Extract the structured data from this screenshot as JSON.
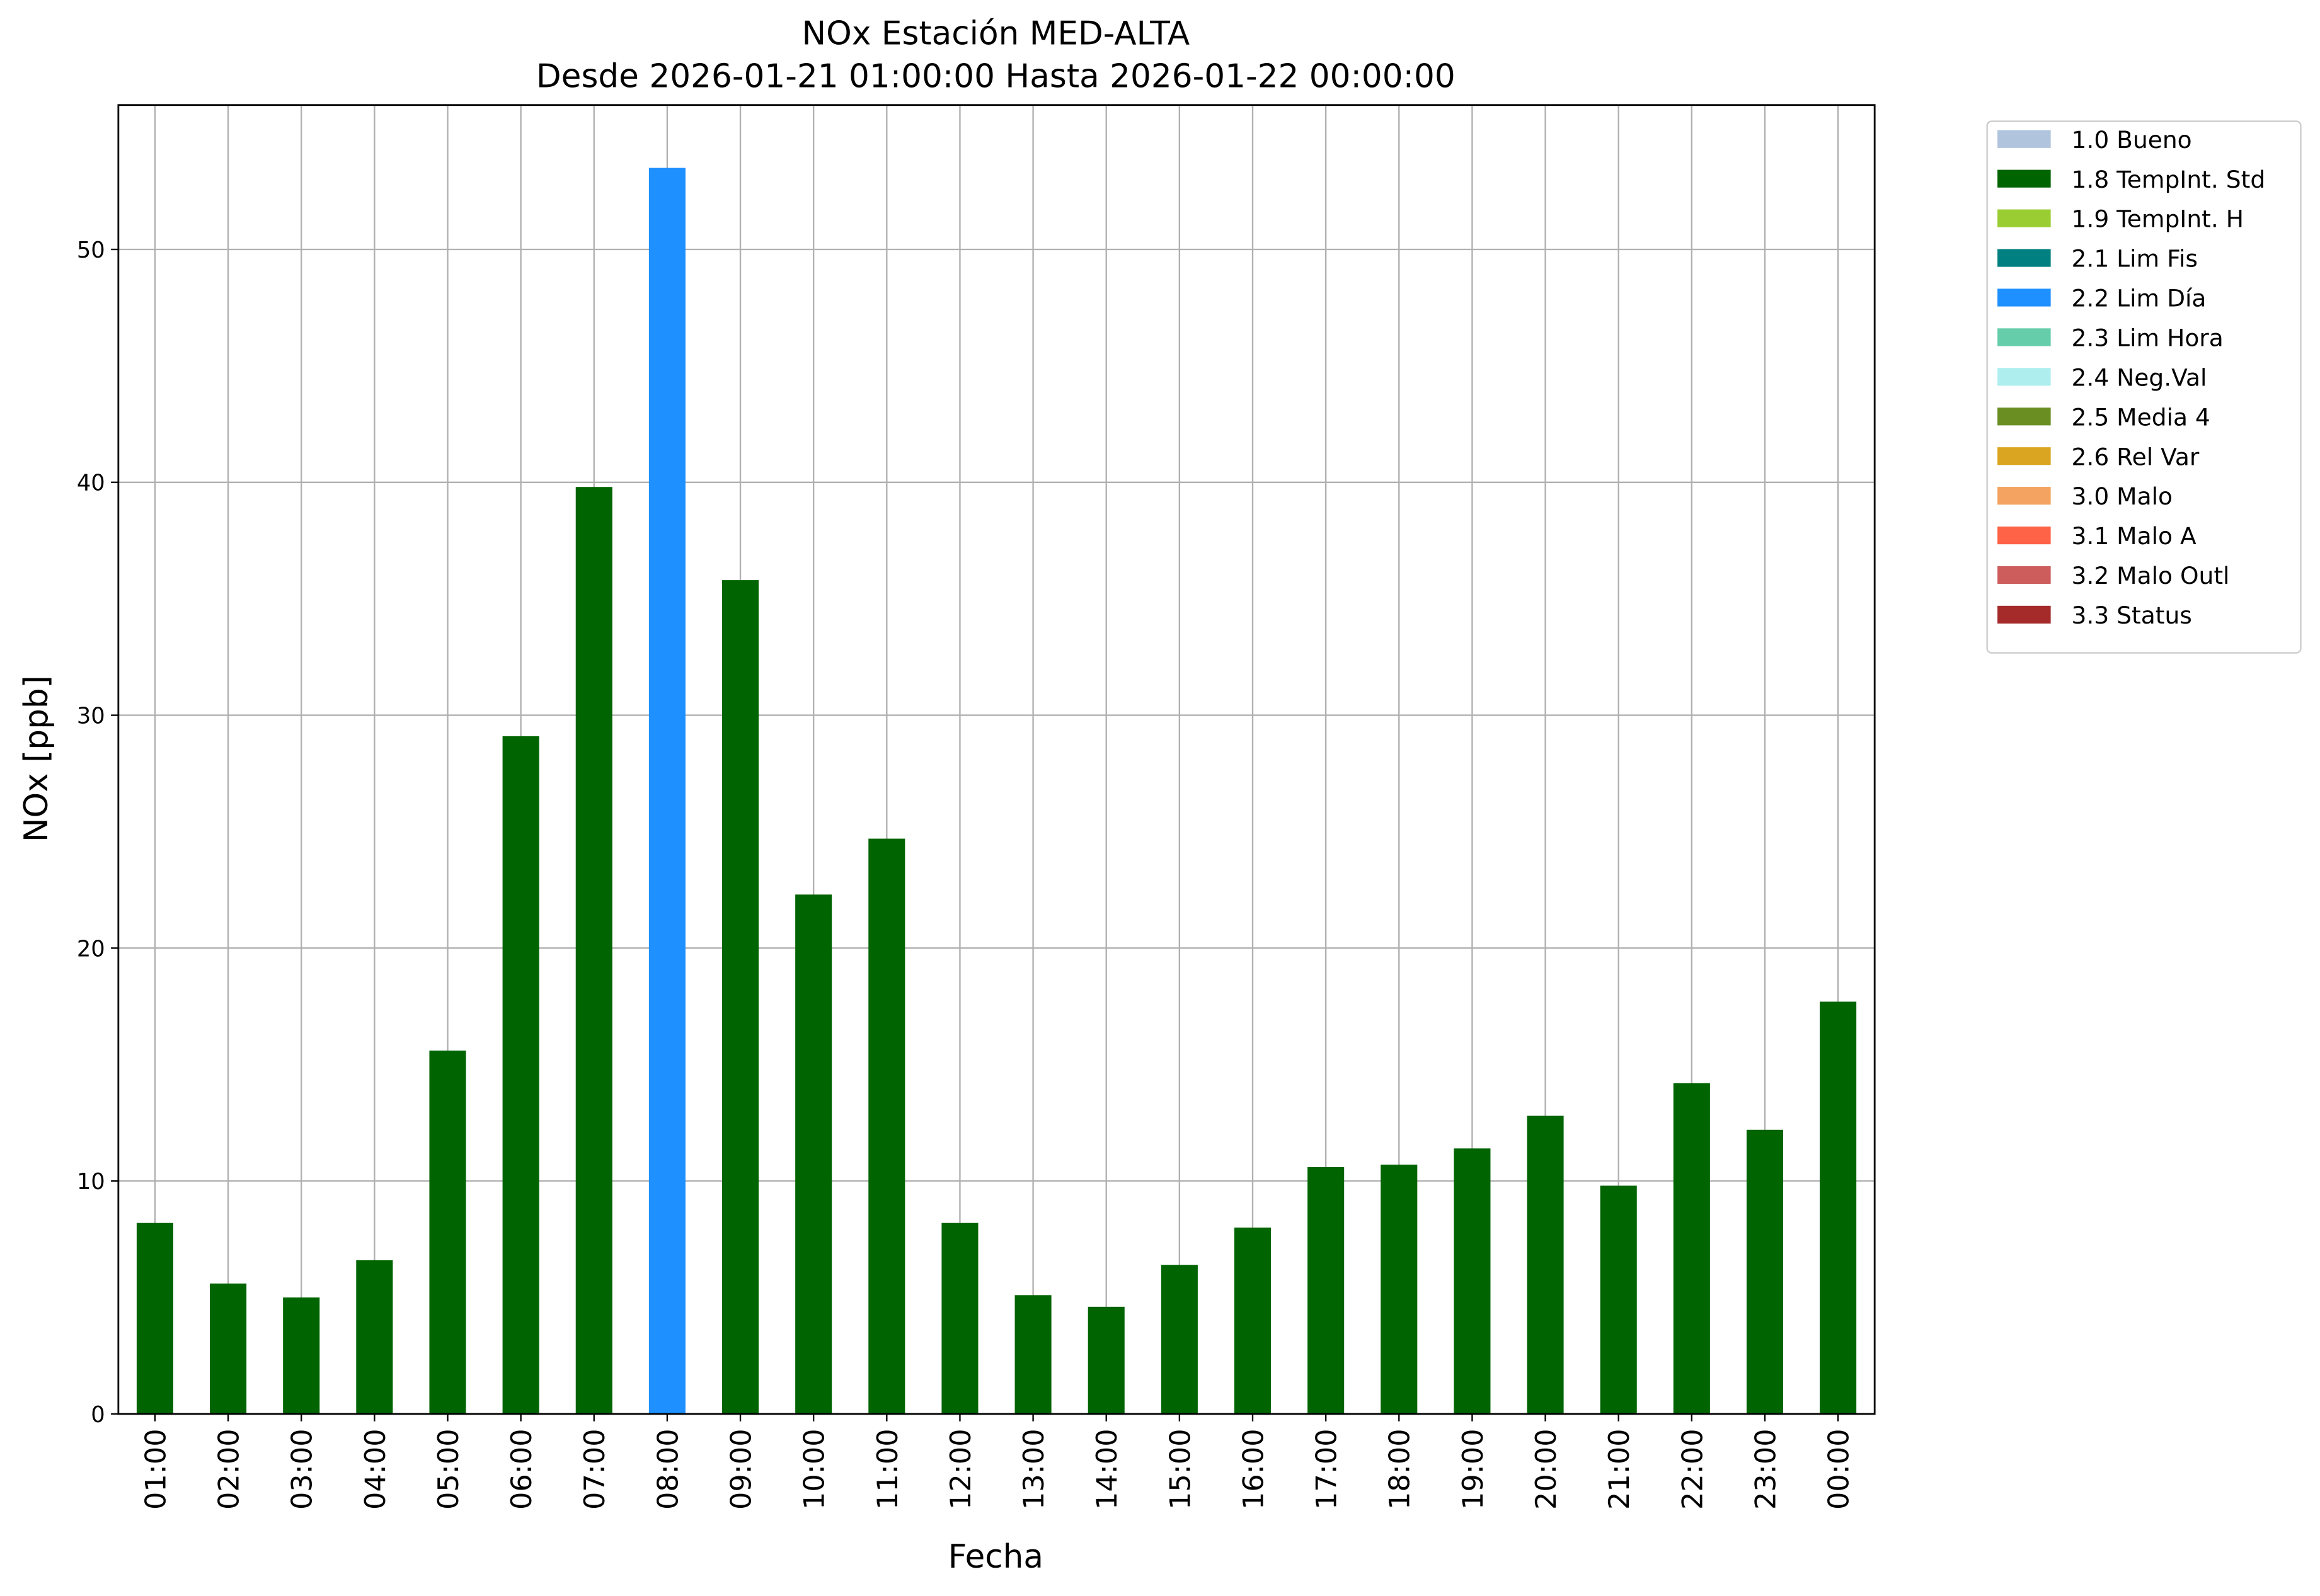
{
  "chart_data": {
    "type": "bar",
    "title": "NOx Estación MED-ALTA",
    "subtitle": "Desde 2026-01-21 01:00:00 Hasta 2026-01-22 00:00:00",
    "x_label": "Fecha",
    "y_label": "NOx [ppb]",
    "categories": [
      "01:00",
      "02:00",
      "03:00",
      "04:00",
      "05:00",
      "06:00",
      "07:00",
      "08:00",
      "09:00",
      "10:00",
      "11:00",
      "12:00",
      "13:00",
      "14:00",
      "15:00",
      "16:00",
      "17:00",
      "18:00",
      "19:00",
      "20:00",
      "21:00",
      "22:00",
      "23:00",
      "00:00"
    ],
    "values": [
      8.2,
      5.6,
      5.0,
      6.6,
      15.6,
      29.1,
      39.8,
      53.5,
      35.8,
      22.3,
      24.7,
      8.2,
      5.1,
      4.6,
      6.4,
      8.0,
      10.6,
      10.7,
      11.4,
      12.8,
      9.8,
      14.2,
      12.2,
      17.7
    ],
    "colors": [
      "#006400",
      "#006400",
      "#006400",
      "#006400",
      "#006400",
      "#006400",
      "#006400",
      "#1e90ff",
      "#006400",
      "#006400",
      "#006400",
      "#006400",
      "#006400",
      "#006400",
      "#006400",
      "#006400",
      "#006400",
      "#006400",
      "#006400",
      "#006400",
      "#006400",
      "#006400",
      "#006400",
      "#006400"
    ],
    "ylim": [
      0,
      56.2
    ],
    "yticks": [
      0,
      10,
      20,
      30,
      40,
      50
    ],
    "grid": true,
    "legend_position": "outside-right",
    "legend": [
      {
        "label": "1.0 Bueno",
        "color": "#b0c4de"
      },
      {
        "label": "1.8 TempInt. Std",
        "color": "#006400"
      },
      {
        "label": "1.9 TempInt. H",
        "color": "#9acd32"
      },
      {
        "label": "2.1 Lim Fis",
        "color": "#008080"
      },
      {
        "label": "2.2 Lim Día",
        "color": "#1e90ff"
      },
      {
        "label": "2.3 Lim Hora",
        "color": "#66cdaa"
      },
      {
        "label": "2.4 Neg.Val",
        "color": "#afeeee"
      },
      {
        "label": "2.5 Media 4",
        "color": "#6b8e23"
      },
      {
        "label": "2.6 Rel Var",
        "color": "#daa520"
      },
      {
        "label": "3.0 Malo",
        "color": "#f4a460"
      },
      {
        "label": "3.1 Malo A",
        "color": "#ff6347"
      },
      {
        "label": "3.2 Malo Outl",
        "color": "#cd5c5c"
      },
      {
        "label": "3.3 Status",
        "color": "#a52a2a"
      }
    ]
  }
}
